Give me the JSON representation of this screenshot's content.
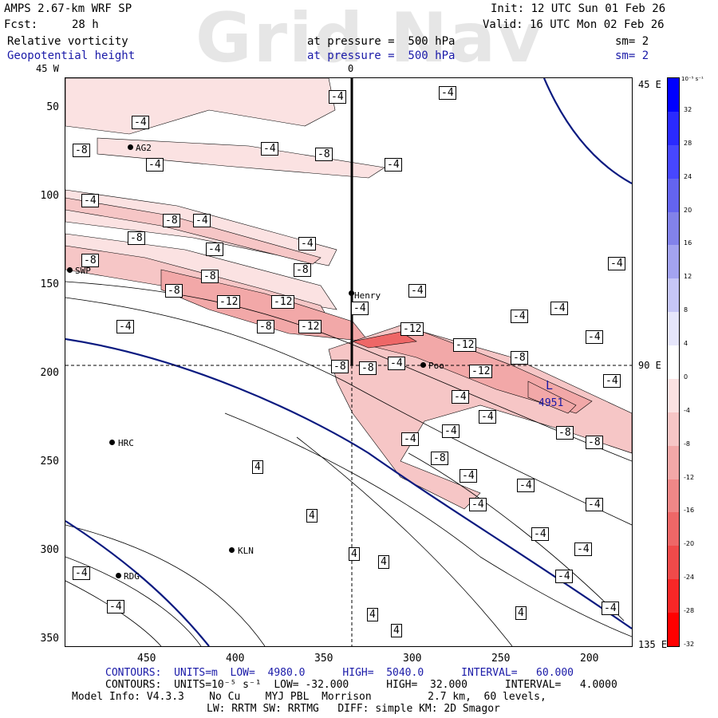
{
  "header": {
    "model": "AMPS 2.67-km WRF SP",
    "forecast_label": "Fcst:",
    "forecast_value": "28 h",
    "init": "Init: 12 UTC Sun 01 Feb 26",
    "valid": "Valid: 16 UTC Mon 02 Feb 26",
    "field1": "Relative vorticity",
    "field1_level": "at pressure =  500 hPa",
    "field1_sm": "sm= 2",
    "field2": "Geopotential height",
    "field2_level": "at pressure =  500 hPa",
    "field2_sm": "sm= 2",
    "watermark": "Grid Nav"
  },
  "axes": {
    "top_labels": [
      "45 W",
      "0"
    ],
    "right_labels": [
      "45 E",
      "90 E",
      "135 E"
    ],
    "y_ticks": [
      "50",
      "100",
      "150",
      "200",
      "250",
      "300",
      "350"
    ],
    "x_ticks": [
      "450",
      "400",
      "350",
      "300",
      "250",
      "200"
    ]
  },
  "stations": [
    "AG2",
    "SWP",
    "Henry",
    "Poo",
    "HRC",
    "KLN",
    "RDG"
  ],
  "map_labels": {
    "low_symbol": "L",
    "low_value": "4951"
  },
  "contour_labels": [
    "-4",
    "-8",
    "-12",
    "4"
  ],
  "colorbar": {
    "unit": "10⁻⁵ s⁻¹",
    "levels": [
      "32",
      "28",
      "24",
      "20",
      "16",
      "12",
      "8",
      "4",
      "0",
      "-4",
      "-8",
      "-12",
      "-16",
      "-20",
      "-24",
      "-28",
      "-32"
    ],
    "colors": [
      "#0000ff",
      "#2a2aff",
      "#4747ff",
      "#6464f0",
      "#8282ea",
      "#a3a3f0",
      "#c6c6f6",
      "#e6e6fb",
      "#ffffff",
      "#fbe2e2",
      "#f6c6c6",
      "#f2a8a8",
      "#f08787",
      "#ee6767",
      "#f04a4a",
      "#f72727",
      "#ff0000"
    ]
  },
  "footer": {
    "line1": "CONTOURS:  UNITS=m  LOW=  4980.0      HIGH=  5040.0      INTERVAL=   60.000",
    "line2": "CONTOURS:  UNITS=10⁻⁵ s⁻¹  LOW= -32.000      HIGH=  32.000      INTERVAL=   4.0000",
    "line3": "Model Info: V4.3.3    No Cu    MYJ PBL  Morrison         2.7 km,  60 levels,",
    "line4": "LW: RRTM SW: RRTMG   DIFF: simple KM: 2D Smagor"
  }
}
